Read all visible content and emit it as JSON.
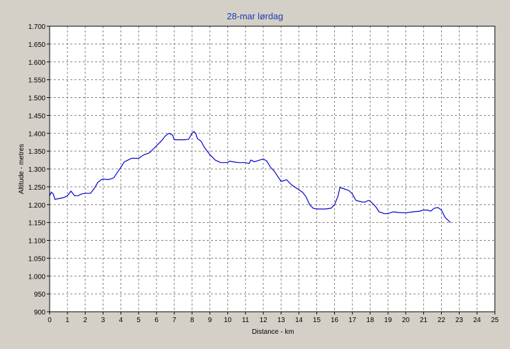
{
  "chart_data": {
    "type": "line",
    "title": "28-mar lørdag",
    "xlabel": "Distance - km",
    "ylabel": "Altitude - metres",
    "xlim": [
      0,
      25
    ],
    "ylim": [
      900,
      1700
    ],
    "x_ticks": [
      0,
      1,
      2,
      3,
      4,
      5,
      6,
      7,
      8,
      9,
      10,
      11,
      12,
      13,
      14,
      15,
      16,
      17,
      18,
      19,
      20,
      21,
      22,
      23,
      24,
      25
    ],
    "y_ticks": [
      900,
      950,
      1000,
      1050,
      1100,
      1150,
      1200,
      1250,
      1300,
      1350,
      1400,
      1450,
      1500,
      1550,
      1600,
      1650,
      1700
    ],
    "y_tick_labels": [
      "900",
      "950",
      "1.000",
      "1.050",
      "1.100",
      "1.150",
      "1.200",
      "1.250",
      "1.300",
      "1.350",
      "1.400",
      "1.450",
      "1.500",
      "1.550",
      "1.600",
      "1.650",
      "1.700"
    ],
    "grid": true,
    "colors": {
      "line": "#0000cc",
      "title": "#1a3cb4",
      "background": "#d4d0c8",
      "plot_background": "#ffffff",
      "grid": "#808080"
    },
    "series": [
      {
        "x": [
          0,
          0.1,
          0.2,
          0.3,
          0.5,
          0.8,
          1.0,
          1.2,
          1.4,
          1.6,
          1.8,
          2.0,
          2.3,
          2.5,
          2.7,
          2.9,
          3.0,
          3.3,
          3.6,
          3.8,
          4.0,
          4.2,
          4.4,
          4.6,
          5.0,
          5.3,
          5.6,
          5.8,
          6.0,
          6.3,
          6.5,
          6.7,
          6.9,
          7.0,
          7.3,
          7.6,
          7.8,
          8.0,
          8.1,
          8.2,
          8.3,
          8.5,
          8.7,
          9.0,
          9.3,
          9.6,
          10.0,
          10.1,
          10.3,
          10.6,
          11.0,
          11.2,
          11.3,
          11.5,
          11.8,
          12.0,
          12.2,
          12.4,
          12.6,
          12.8,
          13.0,
          13.3,
          13.6,
          13.9,
          14.2,
          14.4,
          14.6,
          14.8,
          15.0,
          15.2,
          15.5,
          15.8,
          16.0,
          16.2,
          16.3,
          16.5,
          16.8,
          17.0,
          17.2,
          17.5,
          17.7,
          17.9,
          18.0,
          18.3,
          18.5,
          18.8,
          19.0,
          19.3,
          19.6,
          20.0,
          20.4,
          20.8,
          21.0,
          21.2,
          21.4,
          21.6,
          21.8,
          22.0,
          22.1,
          22.2,
          22.3,
          22.4,
          22.5
        ],
        "y": [
          1225,
          1235,
          1230,
          1215,
          1217,
          1220,
          1225,
          1238,
          1225,
          1225,
          1230,
          1232,
          1232,
          1245,
          1262,
          1270,
          1272,
          1270,
          1275,
          1290,
          1305,
          1320,
          1325,
          1330,
          1330,
          1340,
          1345,
          1355,
          1365,
          1380,
          1393,
          1400,
          1395,
          1382,
          1382,
          1382,
          1383,
          1400,
          1405,
          1400,
          1385,
          1378,
          1360,
          1340,
          1325,
          1318,
          1318,
          1322,
          1320,
          1318,
          1318,
          1315,
          1325,
          1320,
          1325,
          1328,
          1322,
          1305,
          1295,
          1280,
          1265,
          1270,
          1255,
          1245,
          1235,
          1222,
          1200,
          1190,
          1188,
          1188,
          1188,
          1190,
          1200,
          1225,
          1248,
          1245,
          1240,
          1230,
          1212,
          1208,
          1207,
          1212,
          1210,
          1195,
          1180,
          1175,
          1175,
          1180,
          1178,
          1177,
          1180,
          1182,
          1185,
          1185,
          1182,
          1190,
          1192,
          1185,
          1175,
          1165,
          1160,
          1155,
          1150
        ]
      }
    ]
  }
}
